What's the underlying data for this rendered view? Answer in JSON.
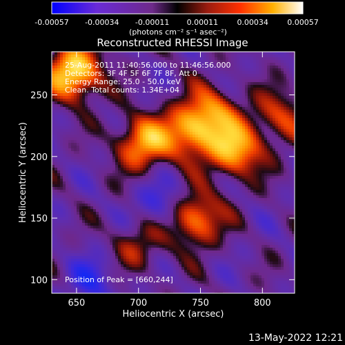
{
  "colorbar": {
    "tick_labels": [
      "-0.00057",
      "-0.00034",
      "-0.00011",
      "0.00011",
      "0.00034",
      "0.00057"
    ],
    "units": "(photons cm⁻² s⁻¹ asec⁻²)"
  },
  "chart_data": {
    "type": "heatmap",
    "title": "Reconstructed RHESSI Image",
    "xlabel": "Heliocentric X (arcsec)",
    "ylabel": "Heliocentric Y (arcsec)",
    "xlim": [
      630,
      826
    ],
    "ylim": [
      89,
      285
    ],
    "x_ticks": [
      "650",
      "700",
      "750",
      "800"
    ],
    "y_ticks": [
      "100",
      "150",
      "200",
      "250"
    ],
    "x_tick_values": [
      650,
      700,
      750,
      800
    ],
    "y_tick_values": [
      100,
      150,
      200,
      250
    ],
    "color_range": [
      -0.00057,
      0.00057
    ],
    "annotations": [
      "25-Aug-2011 11:40:56.000 to 11:46:56.000",
      "Detectors: 3F 4F 5F 6F 7F 8F, Att 0",
      "Energy Range: 25.0 - 50.0 keV",
      "Clean.    Total counts: 1.34E+04"
    ],
    "peak_label": "Position of Peak = [660,244]",
    "peak_position": [
      660,
      244
    ],
    "sources": [
      {
        "x": 648,
        "y": 268,
        "amp": 1.0
      },
      {
        "x": 704,
        "y": 211,
        "amp": 0.75
      },
      {
        "x": 742,
        "y": 220,
        "amp": 0.7
      },
      {
        "x": 778,
        "y": 205,
        "amp": 0.8
      },
      {
        "x": 760,
        "y": 236,
        "amp": 0.55
      },
      {
        "x": 745,
        "y": 150,
        "amp": 0.75
      },
      {
        "x": 700,
        "y": 128,
        "amp": 0.35
      },
      {
        "x": 815,
        "y": 232,
        "amp": 0.45
      },
      {
        "x": 662,
        "y": 99,
        "amp": -0.35
      },
      {
        "x": 720,
        "y": 160,
        "amp": -0.4
      }
    ]
  },
  "timestamp": "13-May-2022 12:21"
}
